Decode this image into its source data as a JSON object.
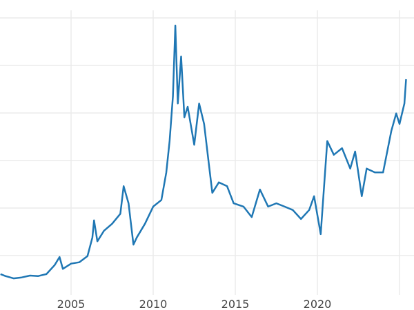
{
  "chart_data": {
    "type": "line",
    "title": "",
    "xlabel": "",
    "ylabel": "",
    "x_ticks": [
      "2005",
      "2010",
      "2015",
      "2020"
    ],
    "x_tick_values": [
      2005,
      2010,
      2015,
      2020
    ],
    "x_grid_values": [
      2005,
      2010,
      2015,
      2020,
      2025
    ],
    "y_grid_values": [
      1,
      2,
      3,
      4,
      5,
      6
    ],
    "y_tick_labels": [],
    "xlim": [
      2000.7,
      2025.5
    ],
    "ylim": [
      0.17,
      6.16
    ],
    "grid": true,
    "legend": "none",
    "line_color": "#1f77b4",
    "series": [
      {
        "x": [
          2000.7,
          2001.0,
          2001.5,
          2002.0,
          2002.5,
          2003.0,
          2003.5,
          2004.0,
          2004.3,
          2004.5,
          2005.0,
          2005.5,
          2006.0,
          2006.3,
          2006.4,
          2006.6,
          2007.0,
          2007.5,
          2008.0,
          2008.2,
          2008.5,
          2008.8,
          2009.0,
          2009.5,
          2010.0,
          2010.5,
          2010.8,
          2011.0,
          2011.2,
          2011.35,
          2011.5,
          2011.7,
          2011.9,
          2012.1,
          2012.5,
          2012.8,
          2013.1,
          2013.4,
          2013.6,
          2014.0,
          2014.5,
          2014.9,
          2015.5,
          2016.0,
          2016.5,
          2017.0,
          2017.5,
          2018.0,
          2018.5,
          2019.0,
          2019.5,
          2019.8,
          2020.2,
          2020.6,
          2021.0,
          2021.5,
          2022.0,
          2022.3,
          2022.7,
          2023.0,
          2023.5,
          2024.0,
          2024.5,
          2024.8,
          2025.0,
          2025.3,
          2025.4
        ],
        "y": [
          0.61,
          0.57,
          0.52,
          0.54,
          0.58,
          0.57,
          0.61,
          0.8,
          0.97,
          0.72,
          0.83,
          0.86,
          0.99,
          1.38,
          1.74,
          1.3,
          1.52,
          1.67,
          1.88,
          2.46,
          2.1,
          1.23,
          1.38,
          1.67,
          2.03,
          2.17,
          2.75,
          3.41,
          4.35,
          5.84,
          4.2,
          5.19,
          3.91,
          4.13,
          3.33,
          4.2,
          3.77,
          2.9,
          2.32,
          2.54,
          2.46,
          2.1,
          2.03,
          1.81,
          2.39,
          2.03,
          2.1,
          2.03,
          1.96,
          1.77,
          1.96,
          2.25,
          1.45,
          3.41,
          3.12,
          3.26,
          2.83,
          3.19,
          2.25,
          2.83,
          2.75,
          2.75,
          3.62,
          3.99,
          3.77,
          4.2,
          4.71
        ]
      }
    ]
  }
}
